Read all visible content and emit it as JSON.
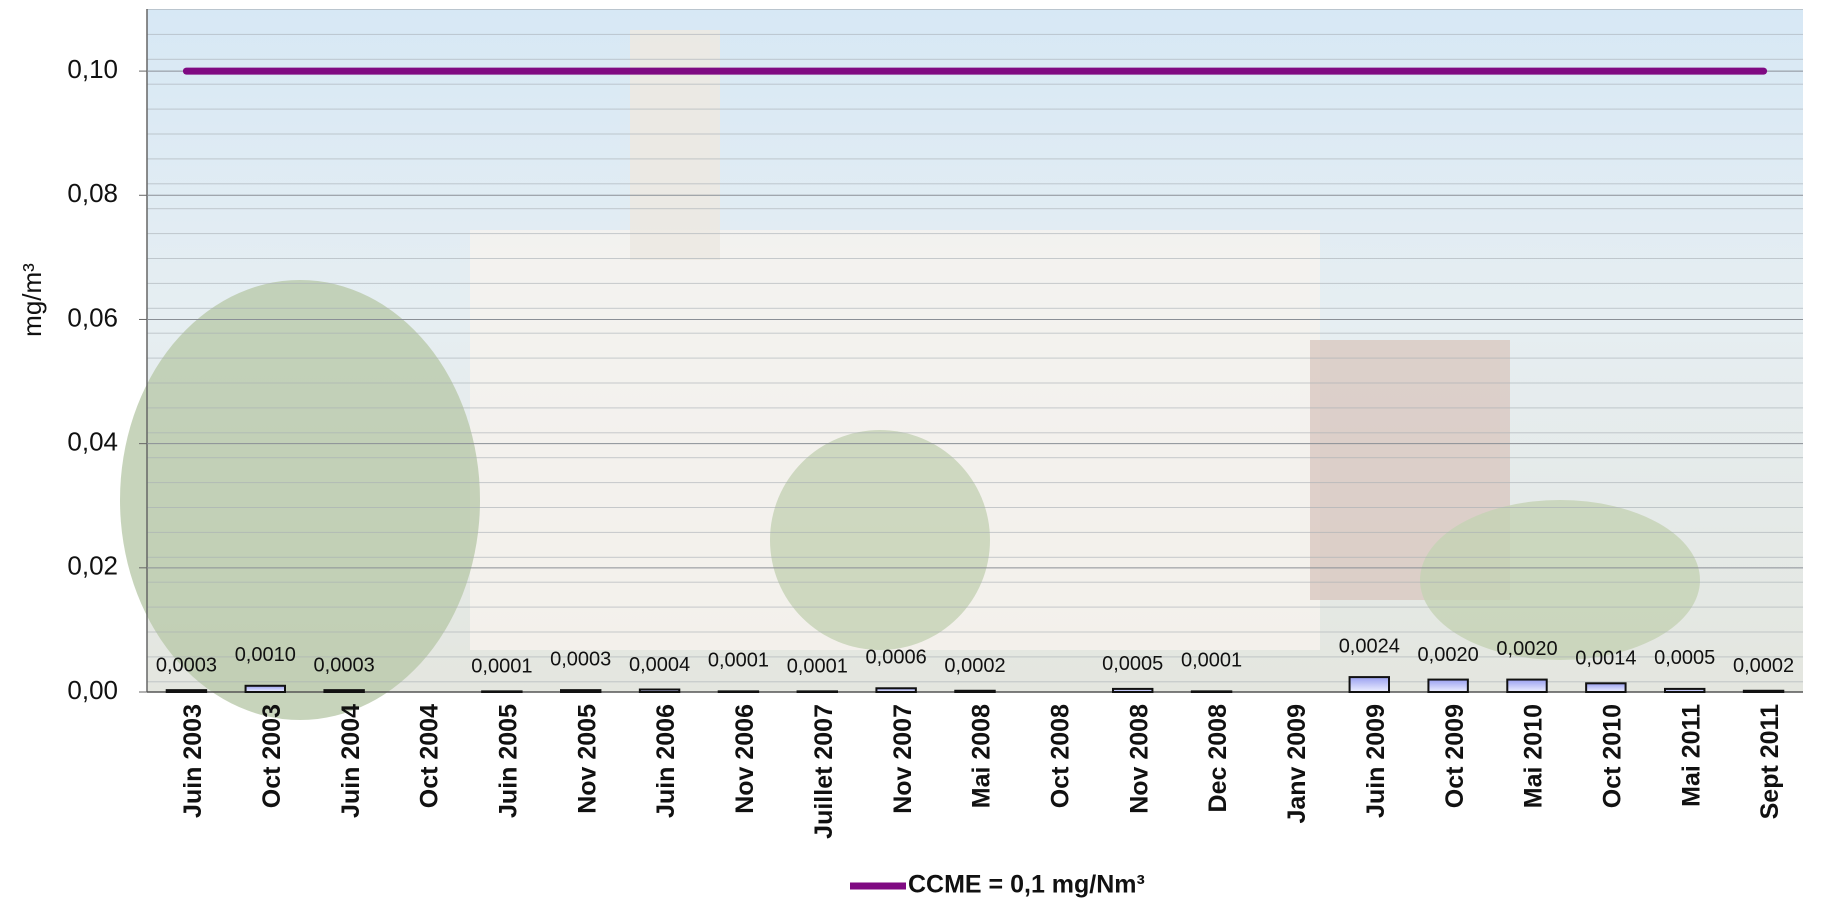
{
  "chart_data": {
    "type": "bar",
    "y_label": "mg/m³",
    "categories": [
      "Juin 2003",
      "Oct 2003",
      "Juin 2004",
      "Oct 2004",
      "Juin 2005",
      "Nov 2005",
      "Juin 2006",
      "Nov 2006",
      "Juillet 2007",
      "Nov 2007",
      "Mai 2008",
      "Oct 2008",
      "Nov 2008",
      "Dec 2008",
      "Janv 2009",
      "Juin 2009",
      "Oct 2009",
      "Mai 2010",
      "Oct 2010",
      "Mai 2011",
      "Sept 2011"
    ],
    "values": [
      0.0003,
      0.001,
      0.0003,
      null,
      0.0001,
      0.0003,
      0.0004,
      0.0001,
      0.0001,
      0.0006,
      0.0002,
      null,
      0.0005,
      0.0001,
      null,
      0.0024,
      0.002,
      0.002,
      0.0014,
      0.0005,
      0.0002
    ],
    "value_labels": [
      "0,0003",
      "0,0010",
      "0,0003",
      null,
      "0,0001",
      "0,0003",
      "0,0004",
      "0,0001",
      "0,0001",
      "0,0006",
      "0,0002",
      null,
      "0,0005",
      "0,0001",
      null,
      "0,0024",
      "0,0020",
      "0,0020",
      "0,0014",
      "0,0005",
      "0,0002"
    ],
    "color": "#c8ccf4",
    "series": [
      {
        "type": "line",
        "name": "CCME = 0,1 mg/Nm³",
        "color": "#7f0a82",
        "values": [
          0.1,
          0.1,
          0.1,
          0.1,
          0.1,
          0.1,
          0.1,
          0.1,
          0.1,
          0.1,
          0.1,
          0.1,
          0.1,
          0.1,
          0.1,
          0.1,
          0.1,
          0.1,
          0.1,
          0.1,
          0.1
        ]
      }
    ],
    "ylim": [
      0,
      0.11
    ],
    "yticks": [
      {
        "value": 0,
        "label": "0,00"
      },
      {
        "value": 0.02,
        "label": "0,02"
      },
      {
        "value": 0.04,
        "label": "0,04"
      },
      {
        "value": 0.06,
        "label": "0,06"
      },
      {
        "value": 0.08,
        "label": "0,08"
      },
      {
        "value": 0.1,
        "label": "0,10"
      }
    ],
    "grid": true,
    "legend": "bottom"
  }
}
